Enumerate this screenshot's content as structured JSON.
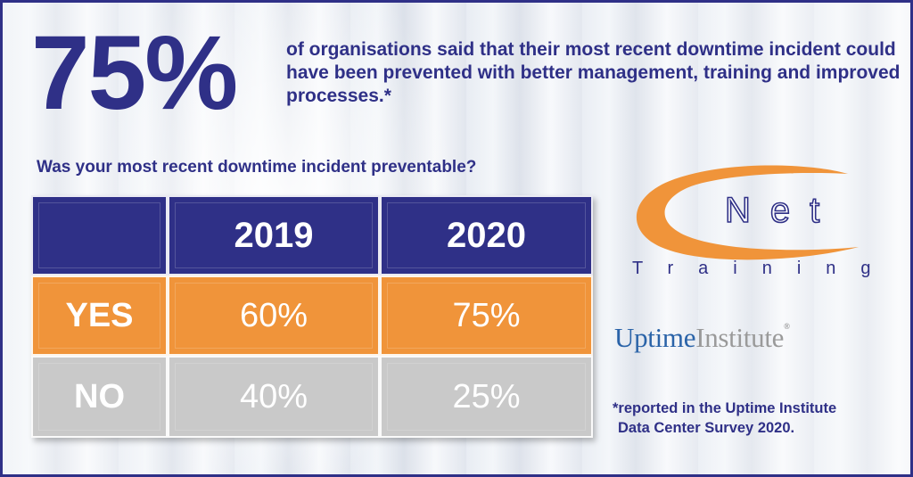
{
  "headline": {
    "stat": "75%",
    "text": "of organisations said that their most recent downtime incident could have been prevented with better management, training and improved processes.*"
  },
  "question": "Was your most recent downtime incident preventable?",
  "chart_data": {
    "type": "table",
    "title": "Was your most recent downtime incident preventable?",
    "columns": [
      "2019",
      "2020"
    ],
    "rows": [
      {
        "label": "YES",
        "values": [
          "60%",
          "75%"
        ]
      },
      {
        "label": "NO",
        "values": [
          "40%",
          "25%"
        ]
      }
    ],
    "series": [
      {
        "name": "2019",
        "values": [
          60,
          40
        ]
      },
      {
        "name": "2020",
        "values": [
          75,
          25
        ]
      }
    ],
    "categories": [
      "YES",
      "NO"
    ]
  },
  "logos": {
    "cnet_word": "Net",
    "cnet_sub": "Training",
    "uptime_word": "Uptime",
    "institute_word": "Institute",
    "registered": "®"
  },
  "footnote": {
    "line1": "*reported in the Uptime Institute",
    "line2": "Data Center Survey 2020."
  },
  "colors": {
    "navy": "#2f3087",
    "orange": "#f0943a",
    "grey": "#c9c9c9",
    "uptime_blue": "#2a63a8"
  }
}
